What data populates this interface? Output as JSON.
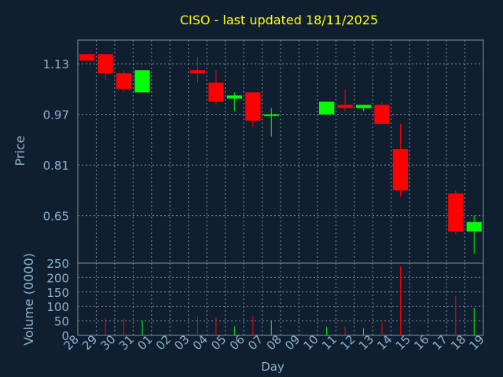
{
  "chart_data": {
    "type": "candlestick",
    "title": "CISO - last updated 18/11/2025",
    "xlabel": "Day",
    "ylabel": "Price",
    "volume_label": "Volume (0000)",
    "grid": true,
    "colors": {
      "background": "#0f1f30",
      "text": "#8fb1d1",
      "title": "#ffff00",
      "up": "#00ff00",
      "down": "#ff0000",
      "grid": "#8090a0"
    },
    "price_ylim": [
      0.5,
      1.205
    ],
    "price_ticks": [
      "1.13",
      "0.97",
      "0.81",
      "0.65"
    ],
    "volume_ylim": [
      0,
      250
    ],
    "volume_ticks": [
      "250",
      "200",
      "150",
      "100",
      "50",
      "0"
    ],
    "x_ticks": [
      "28",
      "29",
      "30",
      "31",
      "01",
      "02",
      "03",
      "04",
      "05",
      "06",
      "07",
      "08",
      "09",
      "10",
      "11",
      "12",
      "13",
      "14",
      "15",
      "16",
      "17",
      "18",
      "19"
    ],
    "candles": [
      {
        "day": "28",
        "open": 1.16,
        "high": 1.16,
        "low": 1.14,
        "close": 1.14,
        "volume": 0
      },
      {
        "day": "29",
        "open": 1.16,
        "high": 1.16,
        "low": 1.08,
        "close": 1.1,
        "volume": 62
      },
      {
        "day": "30",
        "open": 1.1,
        "high": 1.11,
        "low": 1.04,
        "close": 1.05,
        "volume": 58
      },
      {
        "day": "31",
        "open": 1.04,
        "high": 1.11,
        "low": 1.04,
        "close": 1.11,
        "volume": 50
      },
      {
        "day": "03",
        "open": 1.11,
        "high": 1.15,
        "low": 1.07,
        "close": 1.1,
        "volume": 65
      },
      {
        "day": "04",
        "open": 1.07,
        "high": 1.11,
        "low": 1.0,
        "close": 1.01,
        "volume": 62
      },
      {
        "day": "05",
        "open": 1.02,
        "high": 1.04,
        "low": 0.98,
        "close": 1.03,
        "volume": 32
      },
      {
        "day": "06",
        "open": 1.04,
        "high": 1.04,
        "low": 0.93,
        "close": 0.95,
        "volume": 68
      },
      {
        "day": "07",
        "open": 0.97,
        "high": 0.99,
        "low": 0.9,
        "close": 0.97,
        "volume": 50
      },
      {
        "day": "10",
        "open": 0.97,
        "high": 1.01,
        "low": 0.97,
        "close": 1.01,
        "volume": 30
      },
      {
        "day": "11",
        "open": 1.0,
        "high": 1.05,
        "low": 0.98,
        "close": 0.99,
        "volume": 30
      },
      {
        "day": "12",
        "open": 0.99,
        "high": 1.0,
        "low": 0.98,
        "close": 1.0,
        "volume": 25
      },
      {
        "day": "13",
        "open": 1.0,
        "high": 1.01,
        "low": 0.94,
        "close": 0.94,
        "volume": 45
      },
      {
        "day": "14",
        "open": 0.86,
        "high": 0.94,
        "low": 0.71,
        "close": 0.73,
        "volume": 240
      },
      {
        "day": "17",
        "open": 0.72,
        "high": 0.73,
        "low": 0.59,
        "close": 0.6,
        "volume": 135
      },
      {
        "day": "18",
        "open": 0.6,
        "high": 0.65,
        "low": 0.53,
        "close": 0.63,
        "volume": 95
      }
    ]
  }
}
